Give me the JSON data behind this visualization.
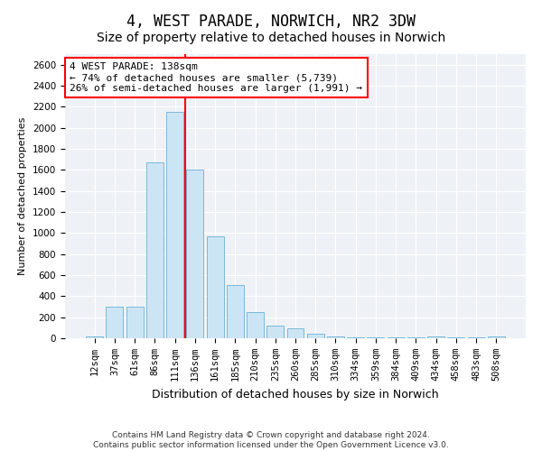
{
  "title": "4, WEST PARADE, NORWICH, NR2 3DW",
  "subtitle": "Size of property relative to detached houses in Norwich",
  "xlabel": "Distribution of detached houses by size in Norwich",
  "ylabel": "Number of detached properties",
  "categories": [
    "12sqm",
    "37sqm",
    "61sqm",
    "86sqm",
    "111sqm",
    "136sqm",
    "161sqm",
    "185sqm",
    "210sqm",
    "235sqm",
    "260sqm",
    "285sqm",
    "310sqm",
    "334sqm",
    "359sqm",
    "384sqm",
    "409sqm",
    "434sqm",
    "458sqm",
    "483sqm",
    "508sqm"
  ],
  "values": [
    20,
    300,
    300,
    1670,
    2150,
    1600,
    970,
    510,
    245,
    120,
    95,
    40,
    20,
    10,
    10,
    5,
    5,
    20,
    5,
    5,
    20
  ],
  "bar_color": "#cce5f5",
  "bar_edge_color": "#7ab8d9",
  "vline_color": "red",
  "annotation_text": "4 WEST PARADE: 138sqm\n← 74% of detached houses are smaller (5,739)\n26% of semi-detached houses are larger (1,991) →",
  "annotation_box_color": "white",
  "annotation_box_edge_color": "red",
  "ylim": [
    0,
    2700
  ],
  "yticks": [
    0,
    200,
    400,
    600,
    800,
    1000,
    1200,
    1400,
    1600,
    1800,
    2000,
    2200,
    2400,
    2600
  ],
  "footnote1": "Contains HM Land Registry data © Crown copyright and database right 2024.",
  "footnote2": "Contains public sector information licensed under the Open Government Licence v3.0.",
  "bg_color": "#eef2f7",
  "title_fontsize": 12,
  "subtitle_fontsize": 10,
  "xlabel_fontsize": 9,
  "ylabel_fontsize": 8,
  "tick_fontsize": 7.5,
  "annot_fontsize": 8,
  "footnote_fontsize": 6.5
}
